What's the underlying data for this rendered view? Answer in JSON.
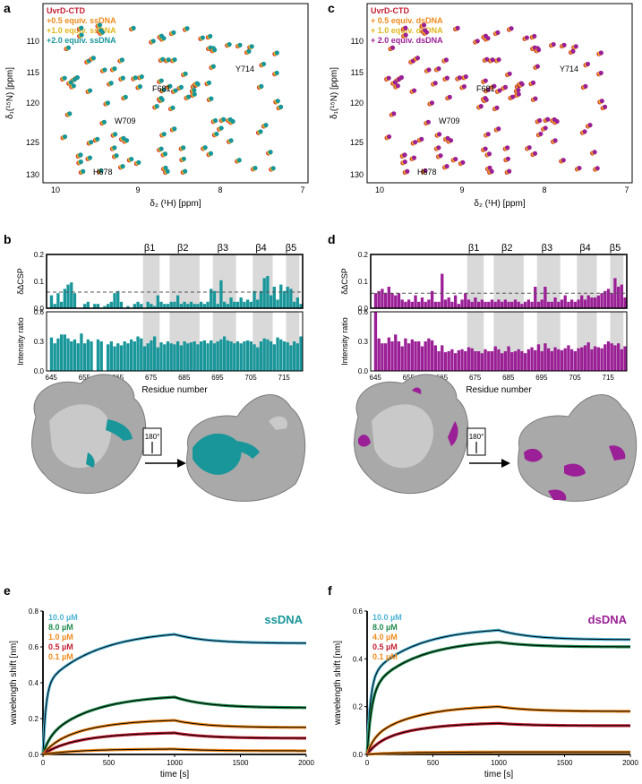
{
  "panels": {
    "a": "a",
    "b": "b",
    "c": "c",
    "d": "d",
    "e": "e",
    "f": "f"
  },
  "colors": {
    "teal": "#18969a",
    "purple": "#9b1f96",
    "red": "#c41f33",
    "orange": "#f08a1c",
    "yellow": "#f2c21c",
    "green": "#1f8a4c",
    "blue": "#4cb3d6",
    "grey_band": "#d9d9d9"
  },
  "nmr": {
    "xlabel": "δ₂ (¹H) [ppm]",
    "ylabel": "δ₁(¹⁵N) [ppm]",
    "xticks": [
      "10",
      "9",
      "8",
      "7"
    ],
    "yticks": [
      "110",
      "115",
      "120",
      "125",
      "130"
    ],
    "residue_labels": [
      "F681",
      "W709",
      "Y714",
      "H678"
    ],
    "legend_a": [
      "UvrD-CTD",
      "+0.5 equiv. ssDNA",
      "+1.0 equiv. ssDNA",
      "+2.0 equiv. ssDNA"
    ],
    "legend_c": [
      "UvrD-CTD",
      "+ 0.5 equiv. dsDNA",
      "+ 1.0 equiv. dsDNA",
      "+ 2.0 equiv. dsDNA"
    ]
  },
  "csp": {
    "top_ylabel": "δΔCSP",
    "bottom_ylabel": "Intensity ratio",
    "xlabel": "Residue number",
    "xticks": [
      "645",
      "655",
      "665",
      "675",
      "685",
      "695",
      "705",
      "715"
    ],
    "top_yticks": [
      "0.0",
      "0.1",
      "0.2"
    ],
    "bottom_yticks": [
      "0.0",
      "0.3",
      "0.6"
    ],
    "strands": [
      "β1",
      "β2",
      "β3",
      "β4",
      "β5"
    ],
    "rotation_label": "180°"
  },
  "chart_data": [
    {
      "panel": "b-top",
      "type": "bar",
      "x": [
        645,
        646,
        647,
        648,
        649,
        650,
        651,
        652,
        653,
        654,
        655,
        656,
        657,
        658,
        659,
        660,
        661,
        662,
        663,
        664,
        665,
        666,
        667,
        668,
        669,
        670,
        671,
        672,
        673,
        674,
        675,
        676,
        677,
        678,
        679,
        680,
        681,
        682,
        683,
        684,
        685,
        686,
        687,
        688,
        689,
        690,
        691,
        692,
        693,
        694,
        695,
        696,
        697,
        698,
        699,
        700,
        701,
        702,
        703,
        704,
        705,
        706,
        707,
        708,
        709,
        710,
        711,
        712,
        713,
        714,
        715,
        716,
        717,
        718,
        719,
        720
      ],
      "values": [
        0.06,
        0.02,
        0.07,
        0.03,
        0.09,
        0.11,
        0.12,
        0.07,
        0.0,
        0.0,
        0.02,
        0.03,
        0.0,
        0.02,
        0.02,
        0.0,
        0.01,
        0.02,
        0.03,
        0.07,
        0.08,
        0.03,
        0.0,
        0.01,
        0.0,
        0.02,
        0.03,
        0.02,
        0.0,
        0.03,
        0.02,
        0.01,
        0.06,
        0.03,
        0.02,
        0.02,
        0.03,
        0.03,
        0.06,
        0.02,
        0.03,
        0.02,
        0.03,
        0.02,
        0.02,
        0.03,
        0.02,
        0.03,
        0.09,
        0.08,
        0.02,
        0.13,
        0.03,
        0.02,
        0.05,
        0.03,
        0.03,
        0.05,
        0.03,
        0.04,
        0.03,
        0.08,
        0.04,
        0.08,
        0.14,
        0.15,
        0.06,
        0.1,
        0.04,
        0.11,
        0.08,
        0.1,
        0.09,
        0.03,
        0.05,
        0.02
      ],
      "threshold": 0.075,
      "ylim": [
        0,
        0.25
      ]
    },
    {
      "panel": "b-bottom",
      "type": "bar",
      "x": [
        645,
        646,
        647,
        648,
        649,
        650,
        651,
        652,
        653,
        654,
        655,
        656,
        657,
        658,
        659,
        660,
        661,
        662,
        663,
        664,
        665,
        666,
        667,
        668,
        669,
        670,
        671,
        672,
        673,
        674,
        675,
        676,
        677,
        678,
        679,
        680,
        681,
        682,
        683,
        684,
        685,
        686,
        687,
        688,
        689,
        690,
        691,
        692,
        693,
        694,
        695,
        696,
        697,
        698,
        699,
        700,
        701,
        702,
        703,
        704,
        705,
        706,
        707,
        708,
        709,
        710,
        711,
        712,
        713,
        714,
        715,
        716,
        717,
        718,
        719,
        720
      ],
      "values": [
        0.34,
        0.28,
        0.33,
        0.37,
        0.37,
        0.33,
        0.3,
        0.32,
        0.28,
        0.38,
        0.28,
        0.32,
        0.3,
        0.0,
        0.32,
        0.3,
        0.0,
        0.27,
        0.3,
        0.25,
        0.28,
        0.26,
        0.3,
        0.28,
        0.32,
        0.3,
        0.35,
        0.33,
        0.25,
        0.28,
        0.31,
        0.35,
        0.24,
        0.29,
        0.27,
        0.3,
        0.28,
        0.27,
        0.3,
        0.26,
        0.3,
        0.28,
        0.29,
        0.3,
        0.27,
        0.3,
        0.31,
        0.28,
        0.31,
        0.28,
        0.3,
        0.32,
        0.35,
        0.31,
        0.3,
        0.28,
        0.3,
        0.28,
        0.3,
        0.31,
        0.3,
        0.27,
        0.24,
        0.3,
        0.33,
        0.32,
        0.3,
        0.27,
        0.34,
        0.32,
        0.3,
        0.29,
        0.26,
        0.3,
        0.28,
        0.35
      ],
      "ylim": [
        0,
        0.6
      ]
    },
    {
      "panel": "d-top",
      "type": "bar",
      "x": [
        645,
        646,
        647,
        648,
        649,
        650,
        651,
        652,
        653,
        654,
        655,
        656,
        657,
        658,
        659,
        660,
        661,
        662,
        663,
        664,
        665,
        666,
        667,
        668,
        669,
        670,
        671,
        672,
        673,
        674,
        675,
        676,
        677,
        678,
        679,
        680,
        681,
        682,
        683,
        684,
        685,
        686,
        687,
        688,
        689,
        690,
        691,
        692,
        693,
        694,
        695,
        696,
        697,
        698,
        699,
        700,
        701,
        702,
        703,
        704,
        705,
        706,
        707,
        708,
        709,
        710,
        711,
        712,
        713,
        714,
        715,
        716,
        717,
        718,
        719,
        720
      ],
      "values": [
        0.07,
        0.08,
        0.09,
        0.07,
        0.1,
        0.07,
        0.06,
        0.07,
        0.04,
        0.03,
        0.04,
        0.03,
        0.06,
        0.03,
        0.05,
        0.03,
        0.04,
        0.08,
        0.03,
        0.03,
        0.16,
        0.04,
        0.05,
        0.03,
        0.06,
        0.02,
        0.04,
        0.07,
        0.04,
        0.03,
        0.05,
        0.03,
        0.04,
        0.03,
        0.03,
        0.04,
        0.03,
        0.04,
        0.03,
        0.04,
        0.03,
        0.03,
        0.04,
        0.03,
        0.02,
        0.03,
        0.04,
        0.03,
        0.1,
        0.03,
        0.04,
        0.1,
        0.03,
        0.03,
        0.05,
        0.03,
        0.04,
        0.06,
        0.03,
        0.04,
        0.03,
        0.04,
        0.06,
        0.04,
        0.06,
        0.05,
        0.05,
        0.06,
        0.07,
        0.08,
        0.09,
        0.07,
        0.14,
        0.1,
        0.11,
        0.05
      ],
      "threshold": 0.07,
      "ylim": [
        0,
        0.25
      ]
    },
    {
      "panel": "d-bottom",
      "type": "bar",
      "x": [
        645,
        646,
        647,
        648,
        649,
        650,
        651,
        652,
        653,
        654,
        655,
        656,
        657,
        658,
        659,
        660,
        661,
        662,
        663,
        664,
        665,
        666,
        667,
        668,
        669,
        670,
        671,
        672,
        673,
        674,
        675,
        676,
        677,
        678,
        679,
        680,
        681,
        682,
        683,
        684,
        685,
        686,
        687,
        688,
        689,
        690,
        691,
        692,
        693,
        694,
        695,
        696,
        697,
        698,
        699,
        700,
        701,
        702,
        703,
        704,
        705,
        706,
        707,
        708,
        709,
        710,
        711,
        712,
        713,
        714,
        715,
        716,
        717,
        718,
        719,
        720
      ],
      "values": [
        0.6,
        0.33,
        0.28,
        0.28,
        0.34,
        0.3,
        0.37,
        0.3,
        0.25,
        0.33,
        0.28,
        0.32,
        0.3,
        0.3,
        0.25,
        0.3,
        0.33,
        0.31,
        0.26,
        0.2,
        0.26,
        0.19,
        0.2,
        0.22,
        0.18,
        0.21,
        0.22,
        0.2,
        0.24,
        0.23,
        0.2,
        0.2,
        0.18,
        0.22,
        0.2,
        0.2,
        0.25,
        0.22,
        0.18,
        0.2,
        0.25,
        0.19,
        0.2,
        0.22,
        0.2,
        0.18,
        0.22,
        0.24,
        0.21,
        0.27,
        0.2,
        0.28,
        0.23,
        0.2,
        0.24,
        0.22,
        0.21,
        0.23,
        0.26,
        0.22,
        0.2,
        0.23,
        0.24,
        0.26,
        0.29,
        0.22,
        0.25,
        0.24,
        0.23,
        0.27,
        0.3,
        0.28,
        0.26,
        0.28,
        0.22,
        0.25
      ],
      "ylim": [
        0,
        0.6
      ]
    },
    {
      "panel": "e",
      "type": "line",
      "title": "ssDNA",
      "xlabel": "time [s]",
      "ylabel": "wavelength shift [nm]",
      "xlim": [
        0,
        2000
      ],
      "ylim": [
        0,
        0.8
      ],
      "xticks": [
        "0",
        "500",
        "1000",
        "1500",
        "2000"
      ],
      "yticks": [
        "0.0",
        "0.2",
        "0.4",
        "0.6",
        "0.8"
      ],
      "association_end": 1000,
      "series": [
        {
          "name": "10.0 µM",
          "plateau": 0.67,
          "k_fast": 0.045,
          "frac_fast": 0.55,
          "k_slow": 0.0025,
          "end": 0.62
        },
        {
          "name": "8.0 µM",
          "plateau": 0.32,
          "k_fast": 0.02,
          "frac_fast": 0.25,
          "k_slow": 0.0028,
          "end": 0.26
        },
        {
          "name": "1.0 µM",
          "plateau": 0.19,
          "k_fast": 0.012,
          "frac_fast": 0.2,
          "k_slow": 0.003,
          "end": 0.15
        },
        {
          "name": "0.5 µM",
          "plateau": 0.12,
          "k_fast": 0.01,
          "frac_fast": 0.15,
          "k_slow": 0.003,
          "end": 0.09
        },
        {
          "name": "0.1 µM",
          "plateau": 0.03,
          "k_fast": 0.01,
          "frac_fast": 0.1,
          "k_slow": 0.003,
          "end": 0.02
        }
      ]
    },
    {
      "panel": "f",
      "type": "line",
      "title": "dsDNA",
      "xlabel": "time [s]",
      "ylabel": "wavelength shift [nm]",
      "xlim": [
        0,
        2000
      ],
      "ylim": [
        0,
        0.6
      ],
      "xticks": [
        "0",
        "500",
        "1000",
        "1500",
        "2000"
      ],
      "yticks": [
        "0.0",
        "0.2",
        "0.4",
        "0.6"
      ],
      "association_end": 1000,
      "series": [
        {
          "name": "10.0 µM",
          "plateau": 0.52,
          "k_fast": 0.04,
          "frac_fast": 0.6,
          "k_slow": 0.0028,
          "end": 0.48
        },
        {
          "name": "8.0 µM",
          "plateau": 0.47,
          "k_fast": 0.03,
          "frac_fast": 0.55,
          "k_slow": 0.0028,
          "end": 0.45
        },
        {
          "name": "4.0 µM",
          "plateau": 0.2,
          "k_fast": 0.02,
          "frac_fast": 0.3,
          "k_slow": 0.003,
          "end": 0.18
        },
        {
          "name": "0.5 µM",
          "plateau": 0.13,
          "k_fast": 0.012,
          "frac_fast": 0.3,
          "k_slow": 0.003,
          "end": 0.12
        },
        {
          "name": "0.1 µM",
          "plateau": 0.01,
          "k_fast": 0.01,
          "frac_fast": 0.2,
          "k_slow": 0.003,
          "end": 0.01
        }
      ]
    }
  ]
}
